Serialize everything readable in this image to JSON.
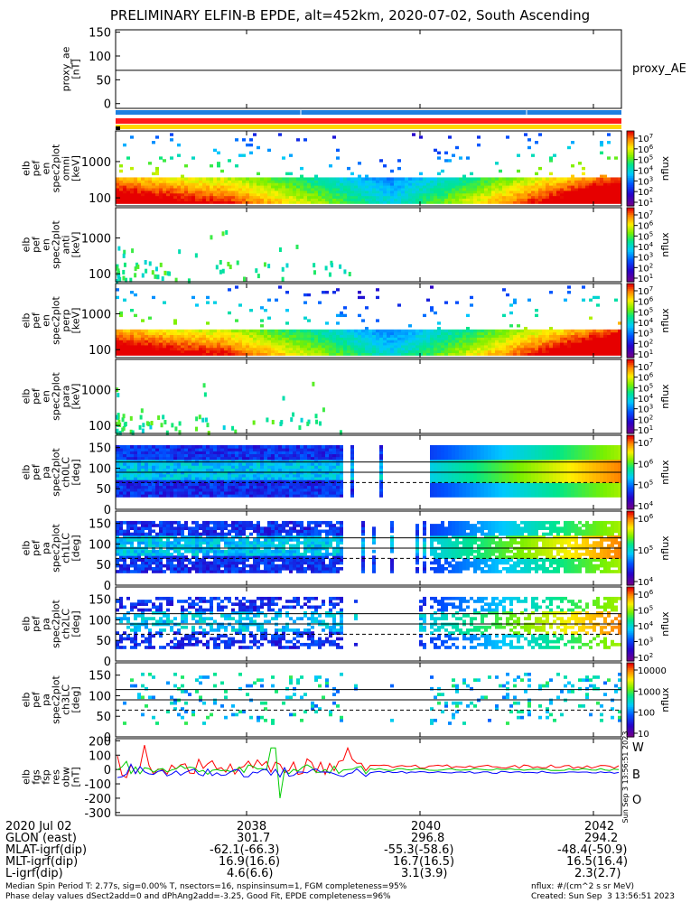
{
  "title": "PRELIMINARY ELFIN-B EPDE, alt=452km, 2020-07-02, South Ascending",
  "colors": {
    "blue_bar": "#1e7fe0",
    "red_bar": "#ff1a1a",
    "yellow_bar": "#ffd700",
    "w_color": "#ff0000",
    "b_color": "#00cc00",
    "o_color": "#0000ff"
  },
  "chart_data": [
    {
      "type": "line",
      "name": "proxy_ae",
      "ylabel": "proxy_ae [nT]",
      "yticks": [
        "150",
        "100",
        "50",
        "0"
      ],
      "ylim": [
        -10,
        155
      ],
      "right_label": "proxy_AE",
      "line_value": 70
    },
    {
      "type": "heatmap",
      "name": "elb pef en spec2plot omni",
      "ylabel": [
        "elb",
        "pef",
        "en",
        "spec2plot",
        "omni",
        "[keV]"
      ],
      "yticks": [
        "1000",
        "100"
      ],
      "log_y": true,
      "colorbar": {
        "label": "nflux",
        "ticks": [
          "10^7",
          "10^6",
          "10^5",
          "10^4",
          "10^3",
          "10^2",
          "10^1"
        ]
      }
    },
    {
      "type": "heatmap",
      "name": "elb pef en spec2plot anti",
      "ylabel": [
        "elb",
        "pef",
        "en",
        "spec2plot",
        "anti",
        "[keV]"
      ],
      "yticks": [
        "1000",
        "100"
      ],
      "log_y": true,
      "colorbar": {
        "label": "nflux",
        "ticks": [
          "10^7",
          "10^6",
          "10^5",
          "10^4",
          "10^3",
          "10^2",
          "10^1"
        ]
      }
    },
    {
      "type": "heatmap",
      "name": "elb pef en spec2plot perp",
      "ylabel": [
        "elb",
        "pef",
        "en",
        "spec2plot",
        "perp",
        "[keV]"
      ],
      "yticks": [
        "1000",
        "100"
      ],
      "log_y": true,
      "colorbar": {
        "label": "nflux",
        "ticks": [
          "10^7",
          "10^6",
          "10^5",
          "10^4",
          "10^3",
          "10^2",
          "10^1"
        ]
      }
    },
    {
      "type": "heatmap",
      "name": "elb pef en spec2plot para",
      "ylabel": [
        "elb",
        "pef",
        "en",
        "spec2plot",
        "para",
        "[keV]"
      ],
      "yticks": [
        "1000",
        "100"
      ],
      "log_y": true,
      "colorbar": {
        "label": "nflux",
        "ticks": [
          "10^7",
          "10^6",
          "10^5",
          "10^4",
          "10^3",
          "10^2",
          "10^1"
        ]
      }
    },
    {
      "type": "heatmap",
      "name": "elb pef pa spec2plot ch0LC",
      "ylabel": [
        "elb",
        "pef",
        "pa",
        "spec2plot",
        "ch0LC",
        "[deg]"
      ],
      "yticks": [
        "150",
        "100",
        "50",
        "0"
      ],
      "ylim": [
        0,
        180
      ],
      "colorbar": {
        "label": "nflux",
        "ticks": [
          "10^7",
          "10^6",
          "10^5",
          "10^4"
        ]
      }
    },
    {
      "type": "heatmap",
      "name": "elb pef pa spec2plot ch1LC",
      "ylabel": [
        "elb",
        "pef",
        "pa",
        "spec2plot",
        "ch1LC",
        "[deg]"
      ],
      "yticks": [
        "150",
        "100",
        "50",
        "0"
      ],
      "ylim": [
        0,
        180
      ],
      "colorbar": {
        "label": "nflux",
        "ticks": [
          "10^6",
          "10^5",
          "10^4"
        ]
      }
    },
    {
      "type": "heatmap",
      "name": "elb pef pa spec2plot ch2LC",
      "ylabel": [
        "elb",
        "pef",
        "pa",
        "spec2plot",
        "ch2LC",
        "[deg]"
      ],
      "yticks": [
        "150",
        "100",
        "50",
        "0"
      ],
      "ylim": [
        0,
        180
      ],
      "colorbar": {
        "label": "nflux",
        "ticks": [
          "10^6",
          "10^5",
          "10^4",
          "10^3",
          "10^2"
        ]
      }
    },
    {
      "type": "heatmap",
      "name": "elb pef pa spec2plot ch3LC",
      "ylabel": [
        "elb",
        "pef",
        "pa",
        "spec2plot",
        "ch3LC",
        "[deg]"
      ],
      "yticks": [
        "150",
        "100",
        "50",
        "0"
      ],
      "ylim": [
        0,
        180
      ],
      "colorbar": {
        "label": "nflux",
        "ticks": [
          "10000",
          "1000",
          "100",
          "10"
        ]
      }
    },
    {
      "type": "line",
      "name": "elb fgs fsp res obw",
      "ylabel": [
        "elb",
        "fgs",
        "fsp",
        "res",
        "obw",
        "[nT]"
      ],
      "yticks": [
        "200",
        "100",
        "0",
        "-100",
        "-200",
        "-300"
      ],
      "ylim": [
        -320,
        215
      ],
      "series": [
        {
          "name": "W",
          "color": "#ff0000"
        },
        {
          "name": "B",
          "color": "#00cc00"
        },
        {
          "name": "O",
          "color": "#0000ff"
        }
      ],
      "side_stamp": "Sun Sep  3 13:56:51 2023"
    }
  ],
  "x_axis": {
    "date_label": "2020 Jul 02",
    "ticks": [
      "2038",
      "2040",
      "2042"
    ]
  },
  "ephemeris": [
    {
      "label": "GLON (east)",
      "v1": "301.7",
      "v2": "296.8",
      "v3": "294.2"
    },
    {
      "label": "MLAT-igrf(dip)",
      "v1": "-62.1(-66.3)",
      "v2": "-55.3(-58.6)",
      "v3": "-48.4(-50.9)"
    },
    {
      "label": "MLT-igrf(dip)",
      "v1": "16.9(16.6)",
      "v2": "16.7(16.5)",
      "v3": "16.5(16.4)"
    },
    {
      "label": "L-igrf(dip)",
      "v1": "4.6(6.6)",
      "v2": "3.1(3.9)",
      "v3": "2.3(2.7)"
    }
  ],
  "footer": {
    "line1_left": "Median Spin Period T: 2.77s, sig=0.00% T, nsectors=16, nspinsinsum=1, FGM completeness=95%",
    "line2_left": "Phase delay values dSect2add=0 and dPhAng2add=-3.25, Good Fit, EPDE completeness=96%",
    "line1_right": "nflux: #/(cm^2 s sr MeV)",
    "line2_right": "Created: Sun Sep  3 13:56:51 2023"
  }
}
